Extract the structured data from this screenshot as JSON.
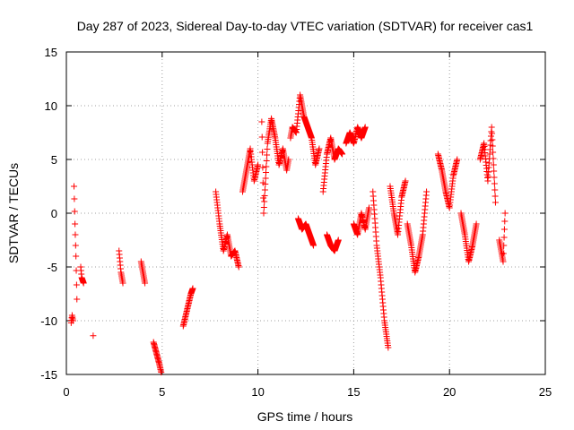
{
  "chart_data": {
    "type": "scatter",
    "title": "Day 287 of 2023, Sidereal Day-to-day VTEC variation (SDTVAR) for receiver cas1",
    "xlabel": "GPS time / hours",
    "ylabel": "SDTVAR / TECUs",
    "xlim": [
      0,
      25
    ],
    "ylim": [
      -15,
      15
    ],
    "xticks": [
      0,
      5,
      10,
      15,
      20,
      25
    ],
    "yticks": [
      -15,
      -10,
      -5,
      0,
      5,
      10,
      15
    ],
    "xtick_labels": [
      "0",
      "5",
      "10",
      "15",
      "20",
      "25"
    ],
    "ytick_labels": [
      "-15",
      "-10",
      "-5",
      "0",
      "5",
      "10",
      "15"
    ],
    "grid": true,
    "marker": "+",
    "color": "#ff0000",
    "segments": [
      {
        "x": [
          0.25,
          0.3,
          0.35
        ],
        "y": [
          -10.2,
          -9.5,
          -10.0
        ]
      },
      {
        "x": [
          0.4,
          0.45,
          0.5,
          0.55
        ],
        "y": [
          2.5,
          -1.0,
          -4.0,
          -8.0
        ]
      },
      {
        "x": [
          0.75,
          0.8,
          0.9
        ],
        "y": [
          -5.0,
          -6.0,
          -6.5
        ]
      },
      {
        "x": [
          1.4
        ],
        "y": [
          -11.4
        ]
      },
      {
        "x": [
          2.75,
          2.85,
          2.95
        ],
        "y": [
          -3.5,
          -5.5,
          -6.5
        ]
      },
      {
        "x": [
          3.9,
          4.0,
          4.1
        ],
        "y": [
          -4.5,
          -5.5,
          -6.5
        ]
      },
      {
        "x": [
          4.55,
          4.7,
          4.85,
          4.95
        ],
        "y": [
          -12.0,
          -13.0,
          -14.0,
          -14.8
        ]
      },
      {
        "x": [
          6.1,
          6.3,
          6.5,
          6.6
        ],
        "y": [
          -10.5,
          -9.0,
          -7.5,
          -7.0
        ]
      },
      {
        "x": [
          7.8,
          8.0,
          8.2,
          8.4,
          8.6,
          8.8,
          9.0
        ],
        "y": [
          2.0,
          -1.0,
          -3.5,
          -2.0,
          -4.0,
          -3.5,
          -5.0
        ]
      },
      {
        "x": [
          9.2,
          9.4,
          9.6,
          9.8,
          10.0
        ],
        "y": [
          2.0,
          4.0,
          6.0,
          3.0,
          4.5
        ]
      },
      {
        "x": [
          10.2,
          10.3,
          10.5,
          10.7,
          10.9,
          11.1,
          11.3,
          11.5,
          11.6
        ],
        "y": [
          8.5,
          0.0,
          6.5,
          8.8,
          7.0,
          4.5,
          6.0,
          4.0,
          5.0
        ]
      },
      {
        "x": [
          11.7,
          11.8,
          12.0,
          12.2,
          12.4,
          12.6,
          12.8,
          13.0,
          13.2
        ],
        "y": [
          7.0,
          8.0,
          7.5,
          11.0,
          9.0,
          8.0,
          7.0,
          4.5,
          6.0
        ]
      },
      {
        "x": [
          12.1,
          12.3,
          12.5,
          12.7,
          12.9
        ],
        "y": [
          -0.5,
          -1.5,
          -1.0,
          -2.0,
          -3.0
        ]
      },
      {
        "x": [
          13.4,
          13.6,
          13.8,
          14.0,
          14.2,
          14.4
        ],
        "y": [
          2.0,
          5.5,
          7.0,
          5.0,
          6.0,
          5.5
        ]
      },
      {
        "x": [
          13.6,
          13.8,
          14.0,
          14.2
        ],
        "y": [
          -2.0,
          -3.0,
          -3.5,
          -2.5
        ]
      },
      {
        "x": [
          14.6,
          14.8,
          15.0,
          15.2,
          15.4,
          15.6
        ],
        "y": [
          6.5,
          7.5,
          6.5,
          8.0,
          7.0,
          8.0
        ]
      },
      {
        "x": [
          15.0,
          15.2,
          15.4,
          15.6,
          15.8
        ],
        "y": [
          -1.0,
          -2.0,
          0.0,
          -1.5,
          0.5
        ]
      },
      {
        "x": [
          16.0,
          16.2,
          16.4,
          16.6,
          16.8
        ],
        "y": [
          2.0,
          -3.0,
          -6.0,
          -10.0,
          -12.5
        ]
      },
      {
        "x": [
          16.9,
          17.1,
          17.3,
          17.5,
          17.7
        ],
        "y": [
          2.5,
          0.0,
          -2.0,
          1.5,
          3.0
        ]
      },
      {
        "x": [
          17.8,
          18.0,
          18.2,
          18.4,
          18.6,
          18.8
        ],
        "y": [
          -1.0,
          -3.0,
          -5.5,
          -4.0,
          -2.0,
          2.0
        ]
      },
      {
        "x": [
          19.4,
          19.6,
          19.8,
          20.0,
          20.2,
          20.4
        ],
        "y": [
          5.5,
          4.0,
          2.0,
          0.5,
          3.5,
          5.0
        ]
      },
      {
        "x": [
          20.6,
          20.8,
          21.0,
          21.2,
          21.4
        ],
        "y": [
          0.0,
          -2.0,
          -4.5,
          -3.0,
          -1.0
        ]
      },
      {
        "x": [
          21.6,
          21.8,
          22.0,
          22.2,
          22.4
        ],
        "y": [
          5.0,
          6.5,
          3.0,
          8.0,
          1.0
        ]
      },
      {
        "x": [
          22.6,
          22.7,
          22.8,
          22.9
        ],
        "y": [
          -2.5,
          -3.5,
          -4.5,
          0.0
        ]
      }
    ]
  }
}
